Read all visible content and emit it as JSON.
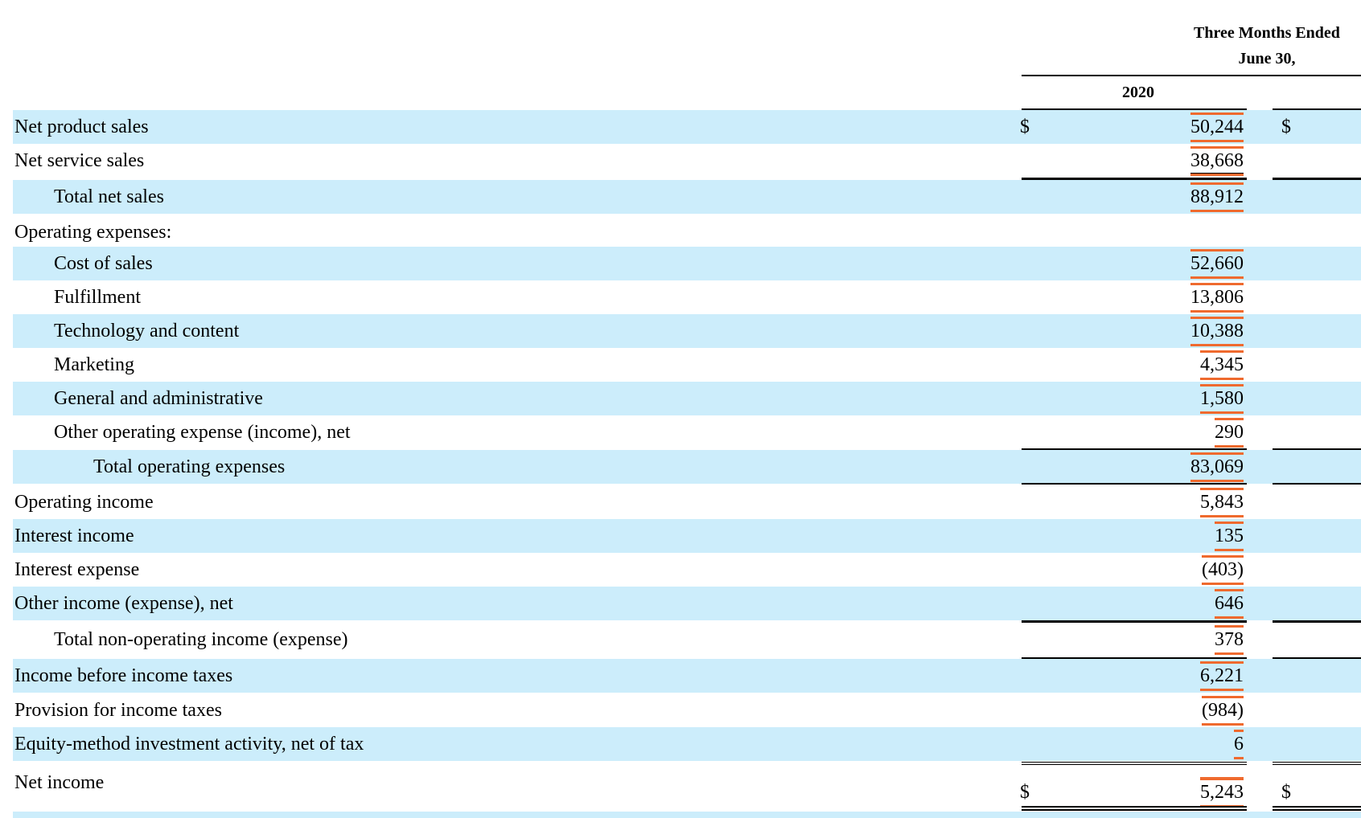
{
  "header": {
    "period_line1": "Three Months Ended",
    "period_line2": "June 30,",
    "year": "2020"
  },
  "currency_symbol": "$",
  "rows": [
    {
      "label": "Net product sales",
      "value": "50,244"
    },
    {
      "label": "Net service sales",
      "value": "38,668"
    },
    {
      "label": "Total net sales",
      "value": "88,912"
    },
    {
      "label": "Operating expenses:",
      "value": ""
    },
    {
      "label": "Cost of sales",
      "value": "52,660"
    },
    {
      "label": "Fulfillment",
      "value": "13,806"
    },
    {
      "label": "Technology and content",
      "value": "10,388"
    },
    {
      "label": "Marketing",
      "value": "4,345"
    },
    {
      "label": "General and administrative",
      "value": "1,580"
    },
    {
      "label": "Other operating expense (income), net",
      "value": "290"
    },
    {
      "label": "Total operating expenses",
      "value": "83,069"
    },
    {
      "label": "Operating income",
      "value": "5,843"
    },
    {
      "label": "Interest income",
      "value": "135"
    },
    {
      "label": "Interest expense",
      "value": "(403)"
    },
    {
      "label": "Other income (expense), net",
      "value": "646"
    },
    {
      "label": "Total non-operating income (expense)",
      "value": "378"
    },
    {
      "label": "Income before income taxes",
      "value": "6,221"
    },
    {
      "label": "Provision for income taxes",
      "value": "(984)"
    },
    {
      "label": "Equity-method investment activity, net of tax",
      "value": "6"
    },
    {
      "label": "Net income",
      "value": "5,243"
    }
  ],
  "colors": {
    "row_shade": "#ccedfb",
    "highlight_marker": "#ef6a2e"
  }
}
